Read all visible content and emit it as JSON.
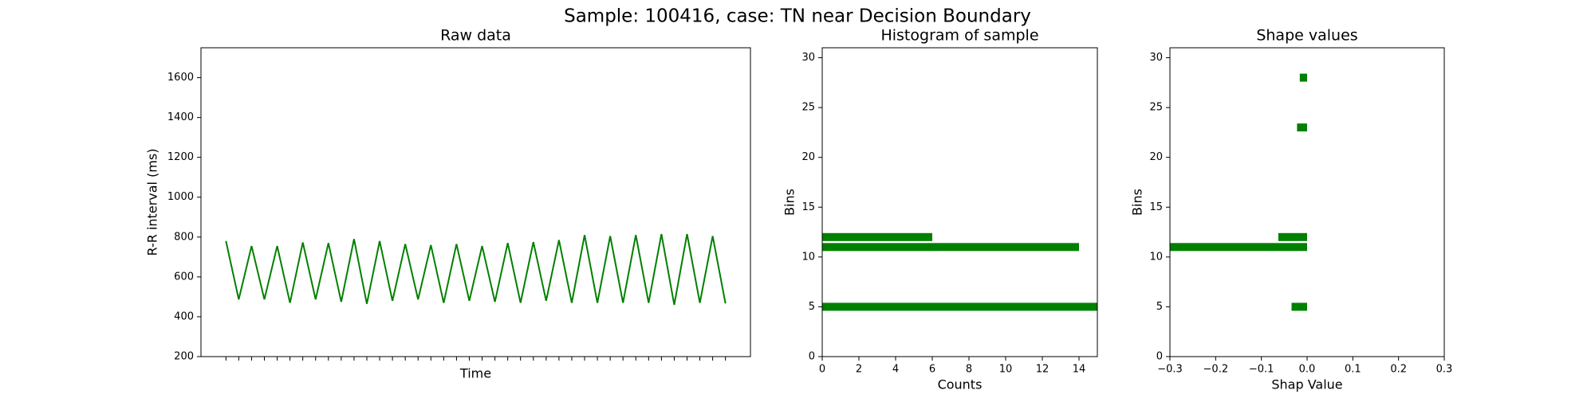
{
  "title": "Sample: 100416, case: TN near Decision Boundary",
  "chart_data": [
    {
      "type": "line",
      "title": "Raw data",
      "xlabel": "Time",
      "ylabel": "R-R interval (ms)",
      "color": "#008000",
      "x": [
        0,
        1,
        2,
        3,
        4,
        5,
        6,
        7,
        8,
        9,
        10,
        11,
        12,
        13,
        14,
        15,
        16,
        17,
        18,
        19,
        20,
        21,
        22,
        23,
        24,
        25,
        26,
        27,
        28,
        29,
        30,
        31,
        32,
        33,
        34,
        35,
        36,
        37,
        38,
        39
      ],
      "values": [
        780,
        487,
        755,
        487,
        755,
        470,
        773,
        487,
        770,
        475,
        790,
        465,
        780,
        480,
        765,
        487,
        760,
        470,
        765,
        480,
        755,
        475,
        770,
        470,
        775,
        480,
        785,
        470,
        810,
        470,
        805,
        470,
        810,
        470,
        815,
        460,
        815,
        470,
        805,
        467
      ],
      "xlim": [
        -1.95,
        40.95
      ],
      "xticks": [
        0,
        1,
        2,
        3,
        4,
        5,
        6,
        7,
        8,
        9,
        10,
        11,
        12,
        13,
        14,
        15,
        16,
        17,
        18,
        19,
        20,
        21,
        22,
        23,
        24,
        25,
        26,
        27,
        28,
        29,
        30,
        31,
        32,
        33,
        34,
        35,
        36,
        37,
        38,
        39
      ],
      "ylim": [
        200,
        1750
      ],
      "yticks": [
        200,
        400,
        600,
        800,
        1000,
        1200,
        1400,
        1600
      ]
    },
    {
      "type": "barh",
      "title": "Histogram of sample",
      "xlabel": "Counts",
      "ylabel": "Bins",
      "color": "#008000",
      "y": [
        5,
        11,
        12
      ],
      "values": [
        15,
        14,
        6
      ],
      "xlim": [
        0,
        15
      ],
      "xticks": [
        0,
        2,
        4,
        6,
        8,
        10,
        12,
        14
      ],
      "ylim": [
        0,
        31
      ],
      "yticks": [
        0,
        5,
        10,
        15,
        20,
        25,
        30
      ]
    },
    {
      "type": "barh",
      "title": "Shape values",
      "xlabel": "Shap Value",
      "ylabel": "Bins",
      "color": "#008000",
      "y": [
        5,
        11,
        12,
        23,
        28
      ],
      "values": [
        -0.034,
        -0.3,
        -0.063,
        -0.022,
        -0.016
      ],
      "xlim": [
        -0.3,
        0.3
      ],
      "xticks": [
        {
          "value": -0.3,
          "label": "−0.3"
        },
        {
          "value": -0.2,
          "label": "−0.2"
        },
        {
          "value": -0.1,
          "label": "−0.1"
        },
        {
          "value": 0,
          "label": "0.0"
        },
        0.1,
        0.2,
        0.3
      ],
      "ylim": [
        0,
        31
      ],
      "yticks": [
        0,
        5,
        10,
        15,
        20,
        25,
        30
      ]
    }
  ]
}
